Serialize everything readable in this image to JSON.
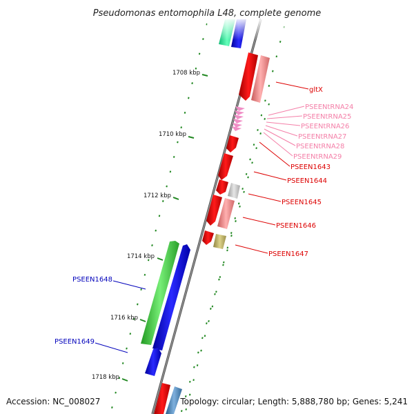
{
  "title": "Pseudomonas entomophila L48, complete genome",
  "footer": {
    "accession": "Accession: NC_008027",
    "topology": "Topology: circular; Length: 5,888,780 bp; Genes: 5,241"
  },
  "ticks": [
    "1708 kbp",
    "1710 kbp",
    "1712 kbp",
    "1714 kbp",
    "1716 kbp",
    "1718 kbp"
  ],
  "labels": [
    {
      "text": "gltX",
      "color": "#dd0000"
    },
    {
      "text": "PSEENtRNA24",
      "color": "#f47fa8"
    },
    {
      "text": "PSEENtRNA25",
      "color": "#f47fa8"
    },
    {
      "text": "PSEENtRNA26",
      "color": "#f47fa8"
    },
    {
      "text": "PSEENtRNA27",
      "color": "#f47fa8"
    },
    {
      "text": "PSEENtRNA28",
      "color": "#f47fa8"
    },
    {
      "text": "PSEENtRNA29",
      "color": "#f47fa8"
    },
    {
      "text": "PSEEN1643",
      "color": "#dd0000"
    },
    {
      "text": "PSEEN1644",
      "color": "#dd0000"
    },
    {
      "text": "PSEEN1645",
      "color": "#dd0000"
    },
    {
      "text": "PSEEN1646",
      "color": "#dd0000"
    },
    {
      "text": "PSEEN1647",
      "color": "#dd0000"
    },
    {
      "text": "PSEEN1648",
      "color": "#0000bb"
    },
    {
      "text": "PSEEN1649",
      "color": "#0000bb"
    }
  ],
  "colors": {
    "backbone": "#777777",
    "cds_red": "#ee0000",
    "cds_pink": "#f08080",
    "trna": "#f08ec6",
    "gray": "#c8c8c8",
    "olive": "#c2b66a",
    "blue": "#0000ee",
    "green": "#44cc44",
    "teal": "#33ee99",
    "steelblue": "#4682b4",
    "tick_green": "#228822"
  }
}
